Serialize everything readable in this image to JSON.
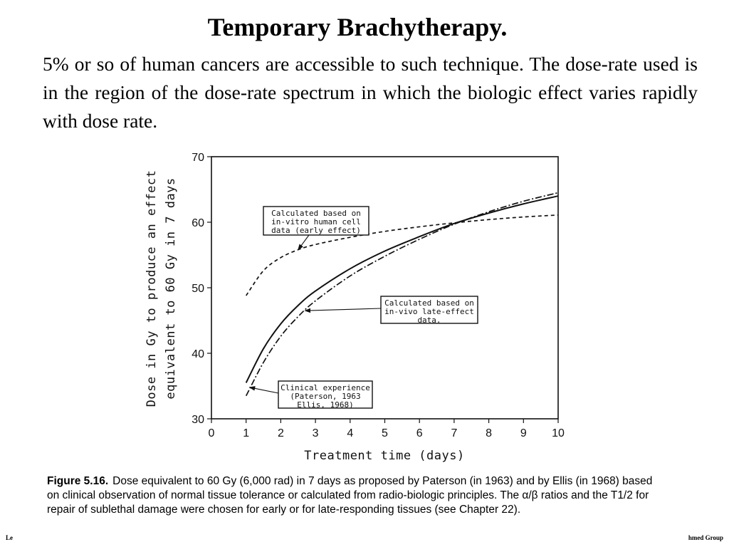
{
  "slide": {
    "title": "Temporary Brachytherapy.",
    "body": "5% or so of human cancers are accessible to such technique. The dose-rate used is in the region of the dose-rate spectrum in which the biologic effect varies rapidly with dose rate."
  },
  "chart_data": {
    "type": "line",
    "title": "",
    "xlabel": "Treatment time (days)",
    "ylabel_lines": [
      "Dose in Gy to produce an effect",
      "equivalent to 60 Gy in 7 days"
    ],
    "xlim": [
      0,
      10
    ],
    "ylim": [
      30,
      70
    ],
    "xticks": [
      0,
      1,
      2,
      3,
      4,
      5,
      6,
      7,
      8,
      9,
      10
    ],
    "yticks": [
      30,
      40,
      50,
      60,
      70
    ],
    "grid": false,
    "series": [
      {
        "style": "dashed",
        "x": [
          1,
          1.5,
          2,
          2.5,
          3,
          4,
          5,
          6,
          7,
          8,
          9,
          10
        ],
        "y": [
          48.8,
          52.6,
          54.6,
          55.8,
          56.6,
          57.7,
          58.6,
          59.3,
          59.9,
          60.4,
          60.8,
          61.1
        ]
      },
      {
        "style": "solid",
        "x": [
          1,
          1.5,
          2,
          2.5,
          3,
          4,
          5,
          6,
          7,
          8,
          9,
          10
        ],
        "y": [
          35.5,
          40.7,
          44.5,
          47.3,
          49.5,
          52.9,
          55.6,
          57.8,
          59.8,
          61.4,
          62.8,
          64.0
        ]
      },
      {
        "style": "dashdot",
        "x": [
          1,
          1.5,
          2,
          2.5,
          3,
          4,
          5,
          6,
          7,
          8,
          9,
          10
        ],
        "y": [
          33.5,
          38.6,
          42.6,
          45.6,
          48.0,
          51.8,
          54.8,
          57.4,
          59.7,
          61.6,
          63.2,
          64.5
        ]
      }
    ],
    "annotations": [
      {
        "lines": [
          "Calculated based on",
          "in-vitro human cell",
          "data (early effect)"
        ],
        "arrow_to": [
          2.5,
          55.8
        ]
      },
      {
        "lines": [
          "Calculated based on",
          "in-vivo late-effect",
          "data."
        ],
        "arrow_to": [
          2.7,
          46.5
        ]
      },
      {
        "lines": [
          "Clinical experience",
          "(Paterson, 1963",
          "Ellis, 1968)"
        ],
        "arrow_to": [
          1.1,
          34.8
        ]
      }
    ]
  },
  "caption": {
    "label": "Figure 5.16.",
    "text": "Dose equivalent to 60 Gy (6,000 rad) in 7 days as proposed by Paterson (in 1963) and by Ellis (in 1968) based on clinical observation of normal tissue tolerance or calculated from radio-biologic principles. The α/β ratios and the T1/2 for repair of sublethal damage were chosen for early or for late-responding tissues (see Chapter 22)."
  },
  "footer": {
    "left": "Le",
    "right": "hmed Group"
  }
}
